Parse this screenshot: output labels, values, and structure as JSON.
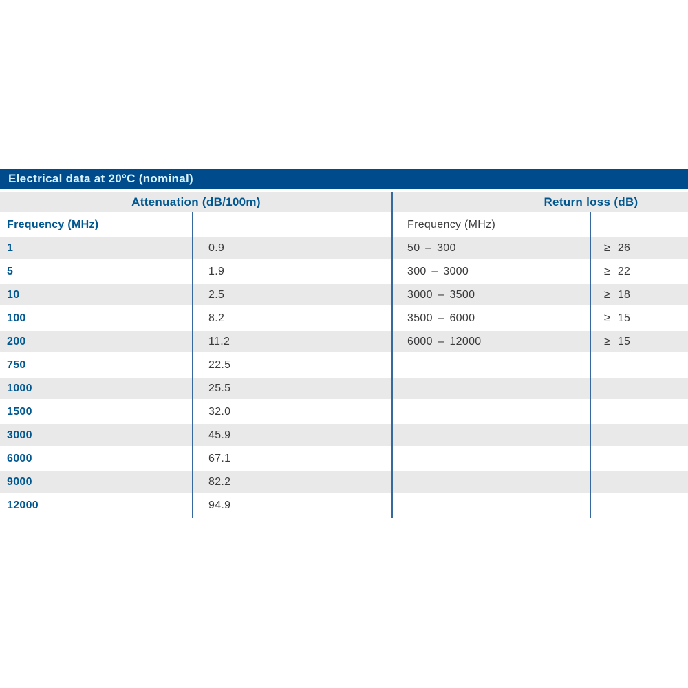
{
  "title_bar": {
    "label": "Electrical data at 20°C (nominal)"
  },
  "colors": {
    "title_bar_bg": "#004b8c",
    "title_text": "#d9f3fd",
    "header_text": "#00578f",
    "frequency_text": "#00578f",
    "value_text": "#3b3b3d",
    "stripe_bg": "#e9e9ea",
    "divider": "#36699e"
  },
  "attenuation": {
    "section_header": "Attenuation (dB/100m)",
    "column_header": "Frequency (MHz)",
    "rows": [
      {
        "freq": "1",
        "value": "0.9"
      },
      {
        "freq": "5",
        "value": "1.9"
      },
      {
        "freq": "10",
        "value": "2.5"
      },
      {
        "freq": "100",
        "value": "8.2"
      },
      {
        "freq": "200",
        "value": "11.2"
      },
      {
        "freq": "750",
        "value": "22.5"
      },
      {
        "freq": "1000",
        "value": "25.5"
      },
      {
        "freq": "1500",
        "value": "32.0"
      },
      {
        "freq": "3000",
        "value": "45.9"
      },
      {
        "freq": "6000",
        "value": "67.1"
      },
      {
        "freq": "9000",
        "value": "82.2"
      },
      {
        "freq": "12000",
        "value": "94.9"
      }
    ]
  },
  "return_loss": {
    "section_header": "Return loss (dB)",
    "column_header": "Frequency (MHz)",
    "rows": [
      {
        "freq": "50 – 300",
        "value": "≥ 26"
      },
      {
        "freq": "300 – 3000",
        "value": "≥ 22"
      },
      {
        "freq": "3000 – 3500",
        "value": "≥ 18"
      },
      {
        "freq": "3500 – 6000",
        "value": "≥ 15"
      },
      {
        "freq": "6000 – 12000",
        "value": "≥ 15"
      }
    ]
  }
}
